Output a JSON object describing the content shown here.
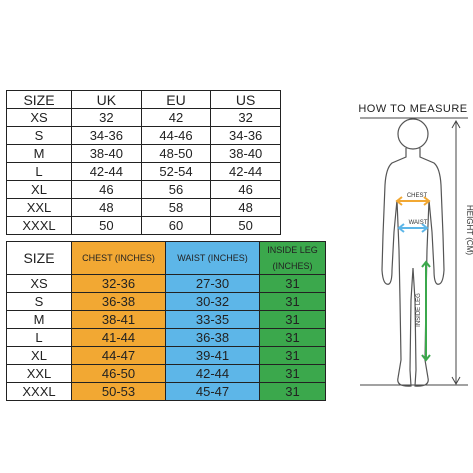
{
  "size_table": {
    "header": [
      "SIZE",
      "UK",
      "EU",
      "US"
    ],
    "rows": [
      [
        "XS",
        "32",
        "42",
        "32"
      ],
      [
        "S",
        "34-36",
        "44-46",
        "34-36"
      ],
      [
        "M",
        "38-40",
        "48-50",
        "38-40"
      ],
      [
        "L",
        "42-44",
        "52-54",
        "42-44"
      ],
      [
        "XL",
        "46",
        "56",
        "46"
      ],
      [
        "XXL",
        "48",
        "58",
        "48"
      ],
      [
        "XXXL",
        "50",
        "60",
        "50"
      ]
    ]
  },
  "measure_table": {
    "header": [
      "SIZE",
      "CHEST (INCHES)",
      "WAIST (INCHES)",
      "INSIDE LEG (INCHES)"
    ],
    "rows": [
      [
        "XS",
        "32-36",
        "27-30",
        "31"
      ],
      [
        "S",
        "36-38",
        "30-32",
        "31"
      ],
      [
        "M",
        "38-41",
        "33-35",
        "31"
      ],
      [
        "L",
        "41-44",
        "36-38",
        "31"
      ],
      [
        "XL",
        "44-47",
        "39-41",
        "31"
      ],
      [
        "XXL",
        "46-50",
        "42-44",
        "31"
      ],
      [
        "XXXL",
        "50-53",
        "45-47",
        "31"
      ]
    ]
  },
  "diagram": {
    "title": "HOW TO MEASURE",
    "height_label": "HEIGHT (CM)",
    "chest_label": "CHEST",
    "waist_label": "WAIST",
    "leg_label": "INSIDE LEG"
  }
}
